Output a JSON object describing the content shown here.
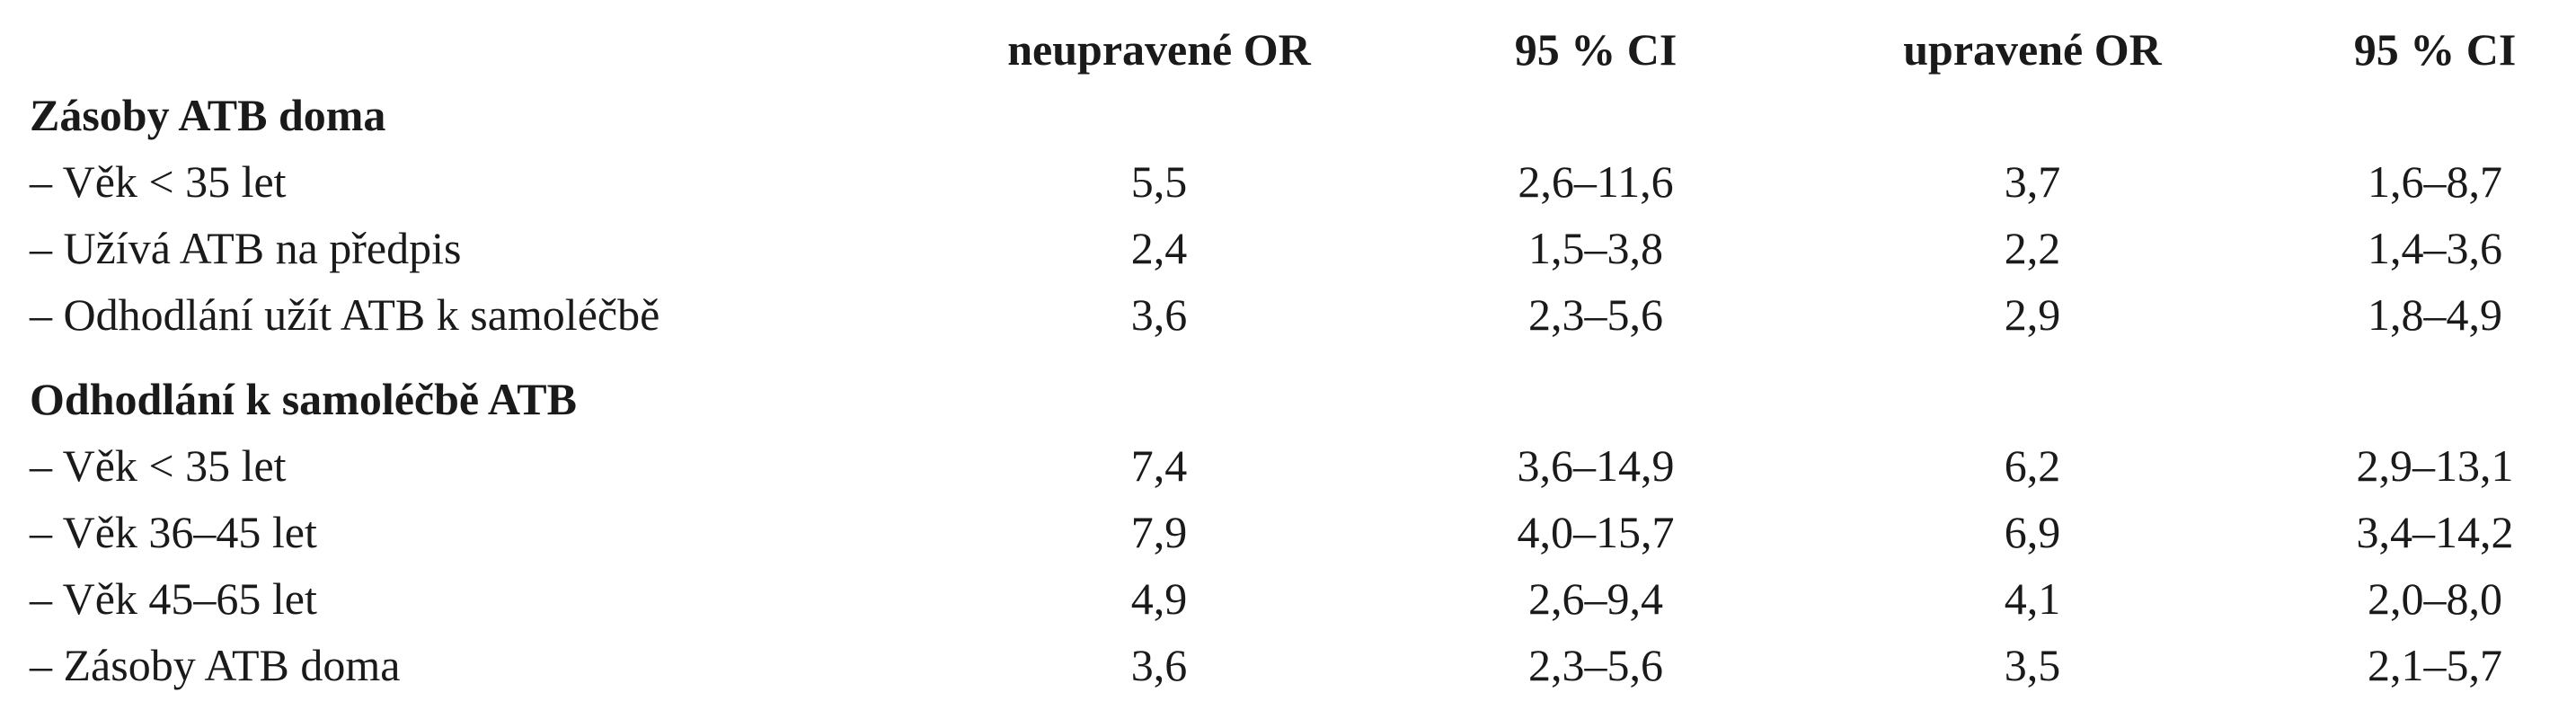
{
  "table": {
    "columns": [
      "neupravené OR",
      "95 % CI",
      "upravené OR",
      "95 % CI"
    ],
    "groups": [
      {
        "title": "Zásoby ATB doma",
        "rows": [
          {
            "label": "– Věk < 35 let",
            "cells": [
              "5,5",
              "2,6–11,6",
              "3,7",
              "1,6–8,7"
            ]
          },
          {
            "label": "– Užívá ATB na předpis",
            "cells": [
              "2,4",
              "1,5–3,8",
              "2,2",
              "1,4–3,6"
            ]
          },
          {
            "label": "– Odhodlání užít ATB k samoléčbě",
            "cells": [
              "3,6",
              "2,3–5,6",
              "2,9",
              "1,8–4,9"
            ]
          }
        ]
      },
      {
        "title": "Odhodlání k samoléčbě ATB",
        "rows": [
          {
            "label": "– Věk < 35 let",
            "cells": [
              "7,4",
              "3,6–14,9",
              "6,2",
              "2,9–13,1"
            ]
          },
          {
            "label": "– Věk 36–45 let",
            "cells": [
              "7,9",
              "4,0–15,7",
              "6,9",
              "3,4–14,2"
            ]
          },
          {
            "label": "– Věk 45–65 let",
            "cells": [
              "4,9",
              "2,6–9,4",
              "4,1",
              "2,0–8,0"
            ]
          },
          {
            "label": "– Zásoby ATB doma",
            "cells": [
              "3,6",
              "2,3–5,6",
              "3,5",
              "2,1–5,7"
            ]
          }
        ]
      }
    ]
  }
}
